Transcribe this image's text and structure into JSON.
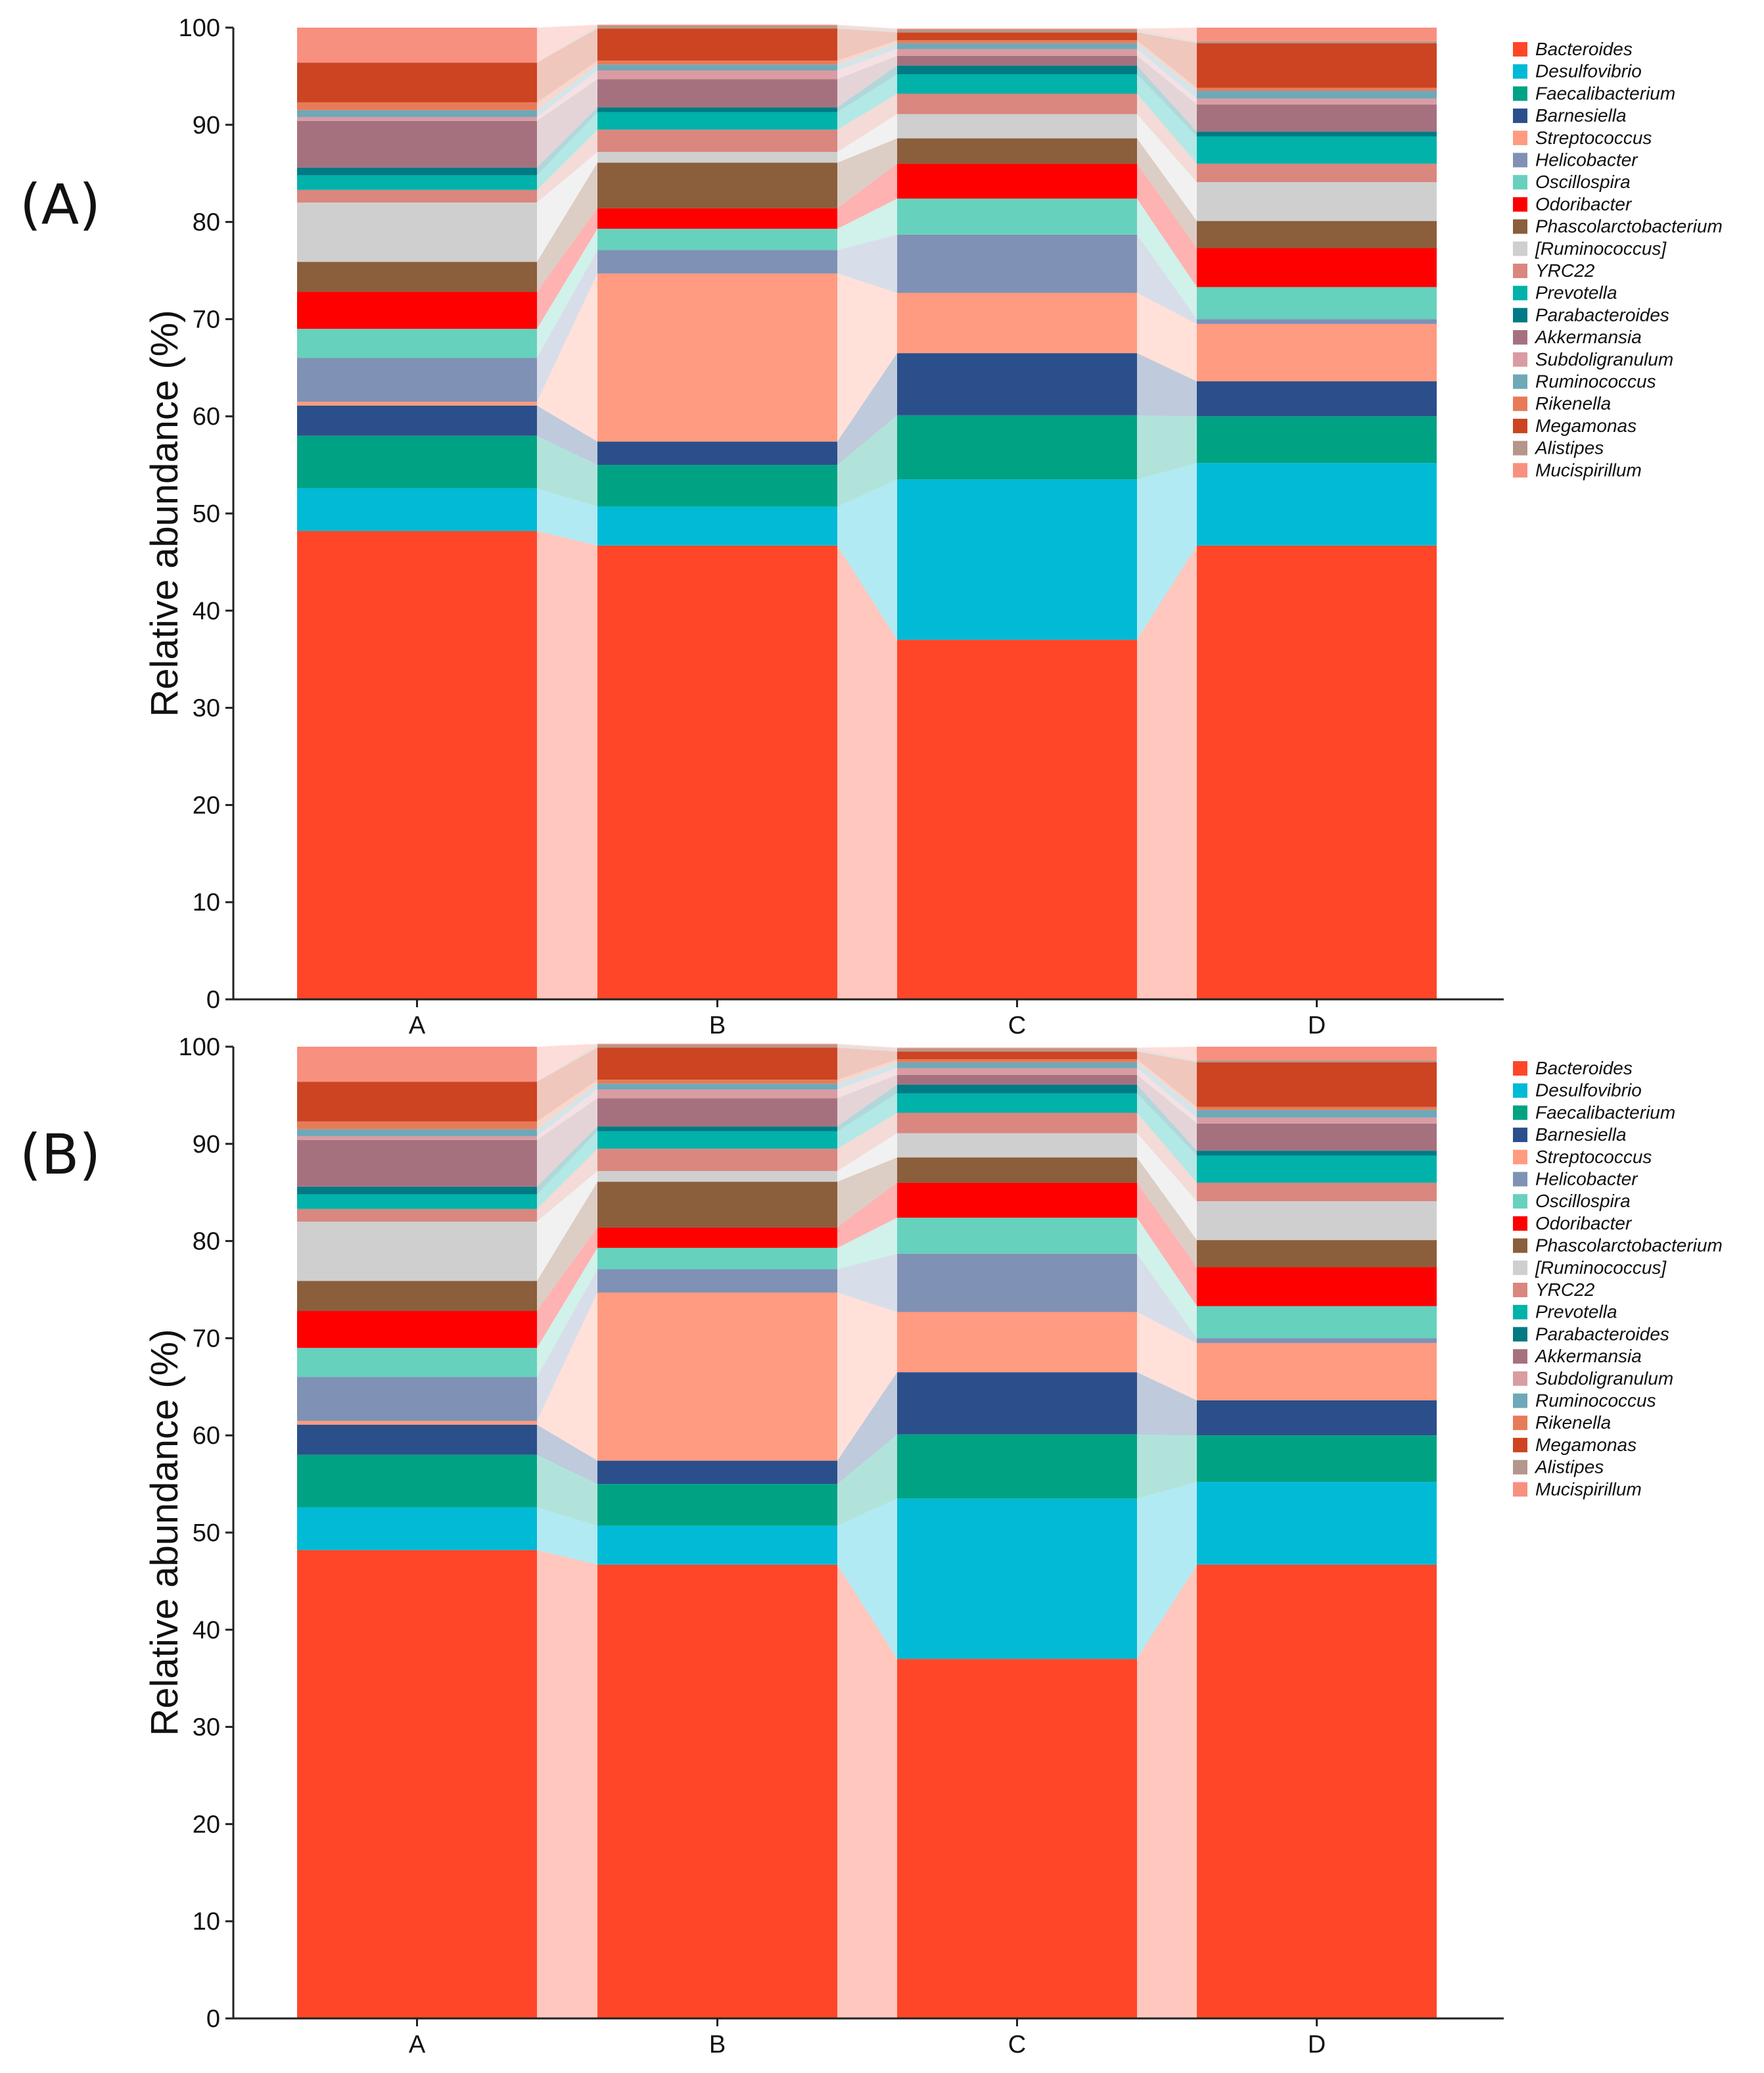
{
  "figure": {
    "panels": [
      "(A)",
      "(B)"
    ]
  },
  "chart_data": [
    {
      "type": "bar",
      "stacked": true,
      "panel": "(A)",
      "title": "",
      "xlabel": "",
      "ylabel": "Relative abundance (%)",
      "ylim": [
        0,
        100
      ],
      "yticks": [
        0,
        10,
        20,
        30,
        40,
        50,
        60,
        70,
        80,
        90,
        100
      ],
      "categories": [
        "A",
        "B",
        "C",
        "D"
      ],
      "legend_position": "right",
      "series": [
        {
          "name": "Bacteroides",
          "color": "#FF4629",
          "values": [
            48.2,
            46.7,
            37.0,
            46.7
          ]
        },
        {
          "name": "Desulfovibrio",
          "color": "#00BAD6",
          "values": [
            4.4,
            4.0,
            16.5,
            8.5
          ]
        },
        {
          "name": "Faecalibacterium",
          "color": "#00A284",
          "values": [
            5.4,
            4.3,
            6.6,
            4.8
          ]
        },
        {
          "name": "Barnesiella",
          "color": "#2B4F8A",
          "values": [
            3.1,
            2.4,
            6.4,
            3.6
          ]
        },
        {
          "name": "Streptococcus",
          "color": "#FF9B80",
          "values": [
            0.4,
            17.3,
            6.2,
            5.9
          ]
        },
        {
          "name": "Helicobacter",
          "color": "#7F91B5",
          "values": [
            4.5,
            2.4,
            6.0,
            0.5
          ]
        },
        {
          "name": "Oscillospira",
          "color": "#66D1BD",
          "values": [
            3.0,
            2.2,
            3.7,
            3.3
          ]
        },
        {
          "name": "Odoribacter",
          "color": "#FF0000",
          "values": [
            3.8,
            2.1,
            3.6,
            4.0
          ]
        },
        {
          "name": "Phascolarctobacterium",
          "color": "#8B5E3C",
          "values": [
            3.1,
            4.7,
            2.6,
            2.8
          ]
        },
        {
          "name": "[Ruminococcus]",
          "color": "#CFCFCF",
          "values": [
            6.1,
            1.1,
            2.5,
            4.0
          ]
        },
        {
          "name": "YRC22",
          "color": "#D9877F",
          "values": [
            1.3,
            2.3,
            2.1,
            1.9
          ]
        },
        {
          "name": "Prevotella",
          "color": "#00B2AA",
          "values": [
            1.5,
            1.8,
            2.0,
            2.8
          ]
        },
        {
          "name": "Parabacteroides",
          "color": "#007A84",
          "values": [
            0.8,
            0.5,
            0.9,
            0.5
          ]
        },
        {
          "name": "Akkermansia",
          "color": "#A6717F",
          "values": [
            4.8,
            2.9,
            1.0,
            2.8
          ]
        },
        {
          "name": "Subdoligranulum",
          "color": "#D99CA3",
          "values": [
            0.4,
            0.9,
            0.7,
            0.6
          ]
        },
        {
          "name": "Ruminococcus",
          "color": "#6FA8B8",
          "values": [
            0.7,
            0.6,
            0.6,
            0.8
          ]
        },
        {
          "name": "Rikenella",
          "color": "#E87B57",
          "values": [
            0.8,
            0.4,
            0.3,
            0.3
          ]
        },
        {
          "name": "Megamonas",
          "color": "#CC4422",
          "values": [
            4.1,
            3.3,
            0.8,
            4.6
          ]
        },
        {
          "name": "Alistipes",
          "color": "#B3978A",
          "values": [
            0.0,
            0.3,
            0.3,
            0.2
          ]
        },
        {
          "name": "Mucispirillum",
          "color": "#F89080",
          "values": [
            3.6,
            0.1,
            0.1,
            1.4
          ]
        }
      ]
    },
    {
      "type": "bar",
      "stacked": true,
      "panel": "(B)",
      "title": "",
      "xlabel": "",
      "ylabel": "Relative abundance (%)",
      "ylim": [
        0,
        100
      ],
      "yticks": [
        0,
        10,
        20,
        30,
        40,
        50,
        60,
        70,
        80,
        90,
        100
      ],
      "categories": [
        "A",
        "B",
        "C",
        "D"
      ],
      "legend_position": "right",
      "series": [
        {
          "name": "Bacteroides",
          "color": "#FF4629",
          "values": [
            48.2,
            46.7,
            37.0,
            46.7
          ]
        },
        {
          "name": "Desulfovibrio",
          "color": "#00BAD6",
          "values": [
            4.4,
            4.0,
            16.5,
            8.5
          ]
        },
        {
          "name": "Faecalibacterium",
          "color": "#00A284",
          "values": [
            5.4,
            4.3,
            6.6,
            4.8
          ]
        },
        {
          "name": "Barnesiella",
          "color": "#2B4F8A",
          "values": [
            3.1,
            2.4,
            6.4,
            3.6
          ]
        },
        {
          "name": "Streptococcus",
          "color": "#FF9B80",
          "values": [
            0.4,
            17.3,
            6.2,
            5.9
          ]
        },
        {
          "name": "Helicobacter",
          "color": "#7F91B5",
          "values": [
            4.5,
            2.4,
            6.0,
            0.5
          ]
        },
        {
          "name": "Oscillospira",
          "color": "#66D1BD",
          "values": [
            3.0,
            2.2,
            3.7,
            3.3
          ]
        },
        {
          "name": "Odoribacter",
          "color": "#FF0000",
          "values": [
            3.8,
            2.1,
            3.6,
            4.0
          ]
        },
        {
          "name": "Phascolarctobacterium",
          "color": "#8B5E3C",
          "values": [
            3.1,
            4.7,
            2.6,
            2.8
          ]
        },
        {
          "name": "[Ruminococcus]",
          "color": "#CFCFCF",
          "values": [
            6.1,
            1.1,
            2.5,
            4.0
          ]
        },
        {
          "name": "YRC22",
          "color": "#D9877F",
          "values": [
            1.3,
            2.3,
            2.1,
            1.9
          ]
        },
        {
          "name": "Prevotella",
          "color": "#00B2AA",
          "values": [
            1.5,
            1.8,
            2.0,
            2.8
          ]
        },
        {
          "name": "Parabacteroides",
          "color": "#007A84",
          "values": [
            0.8,
            0.5,
            0.9,
            0.5
          ]
        },
        {
          "name": "Akkermansia",
          "color": "#A6717F",
          "values": [
            4.8,
            2.9,
            1.0,
            2.8
          ]
        },
        {
          "name": "Subdoligranulum",
          "color": "#D99CA3",
          "values": [
            0.4,
            0.9,
            0.7,
            0.6
          ]
        },
        {
          "name": "Ruminococcus",
          "color": "#6FA8B8",
          "values": [
            0.7,
            0.6,
            0.6,
            0.8
          ]
        },
        {
          "name": "Rikenella",
          "color": "#E87B57",
          "values": [
            0.8,
            0.4,
            0.3,
            0.3
          ]
        },
        {
          "name": "Megamonas",
          "color": "#CC4422",
          "values": [
            4.1,
            3.3,
            0.8,
            4.6
          ]
        },
        {
          "name": "Alistipes",
          "color": "#B3978A",
          "values": [
            0.0,
            0.3,
            0.3,
            0.2
          ]
        },
        {
          "name": "Mucispirillum",
          "color": "#F89080",
          "values": [
            3.6,
            0.1,
            0.1,
            1.4
          ]
        }
      ]
    }
  ]
}
